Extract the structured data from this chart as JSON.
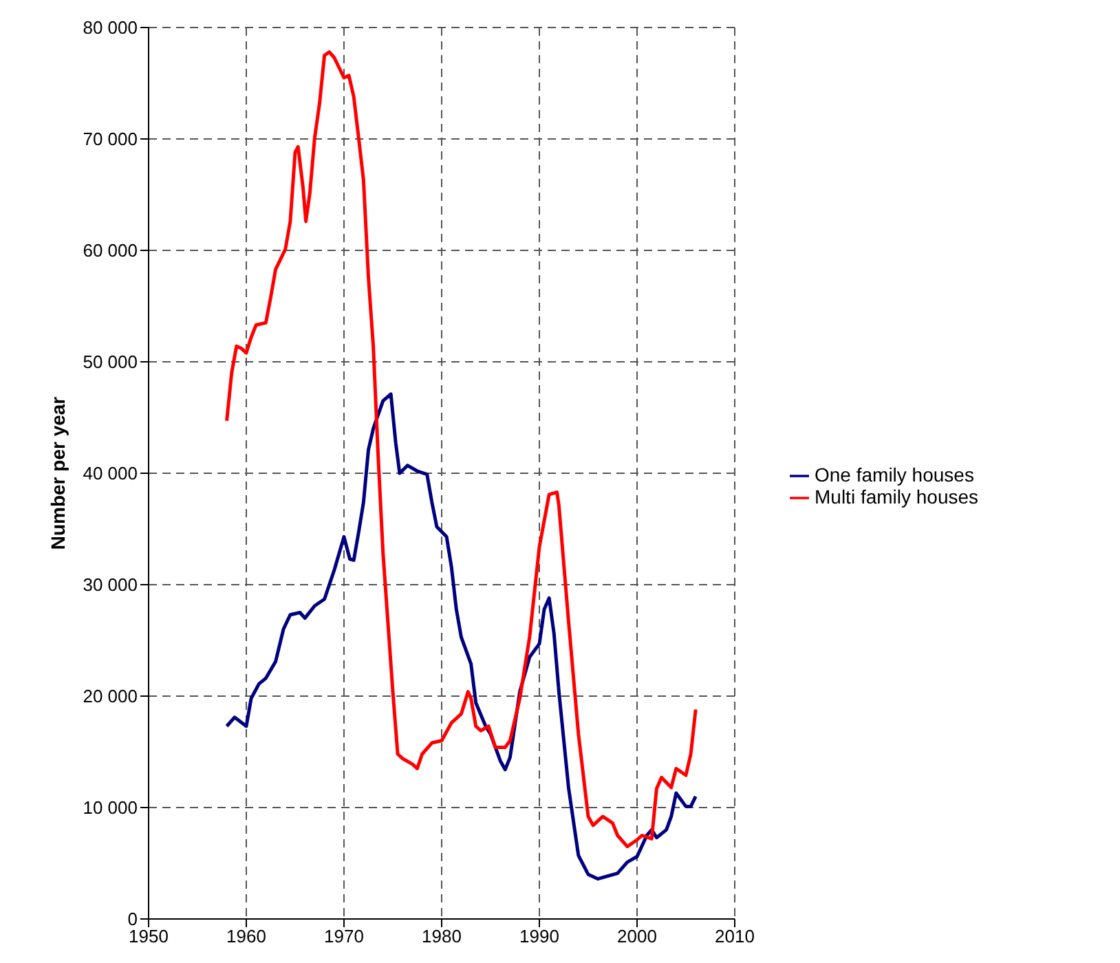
{
  "chart_data": {
    "type": "line",
    "ylabel": "Number per year",
    "xlim": [
      1950,
      2010
    ],
    "xticks": [
      1950,
      1960,
      1970,
      1980,
      1990,
      2000,
      2010
    ],
    "ylim": [
      0,
      80000
    ],
    "yticks": [
      {
        "value": 0,
        "label": "0"
      },
      {
        "value": 10000,
        "label": "10 000"
      },
      {
        "value": 20000,
        "label": "20 000"
      },
      {
        "value": 30000,
        "label": "30 000"
      },
      {
        "value": 40000,
        "label": "40 000"
      },
      {
        "value": 50000,
        "label": "50 000"
      },
      {
        "value": 60000,
        "label": "60 000"
      },
      {
        "value": 70000,
        "label": "70 000"
      },
      {
        "value": 80000,
        "label": "80 000"
      }
    ],
    "grid": true,
    "legend": "right",
    "marker": "none",
    "line_style": "solid",
    "series": [
      {
        "name": "One family houses",
        "color": "#000080",
        "x": [
          1958,
          1958.8,
          1960,
          1960.5,
          1961.3,
          1962,
          1963,
          1963.8,
          1964.5,
          1965.5,
          1966,
          1967,
          1968,
          1969,
          1970,
          1970.6,
          1971,
          1971.5,
          1972,
          1972.5,
          1973,
          1974,
          1974.8,
          1975.3,
          1975.7,
          1976.5,
          1977.5,
          1978.5,
          1979,
          1979.5,
          1980.5,
          1981,
          1981.5,
          1982,
          1983,
          1983.5,
          1984.5,
          1985,
          1986,
          1986.5,
          1987,
          1988,
          1989,
          1990,
          1990.5,
          1991,
          1991.5,
          1992,
          1993,
          1994,
          1995,
          1996,
          1998,
          1999,
          2000,
          2001,
          2001.5,
          2002,
          2003,
          2003.5,
          2004,
          2004.5,
          2005,
          2005.5,
          2006
        ],
        "values": [
          17300,
          18100,
          17300,
          19800,
          21100,
          21600,
          23100,
          26000,
          27300,
          27500,
          27000,
          28100,
          28700,
          31300,
          34300,
          32300,
          32200,
          34700,
          37400,
          42100,
          44000,
          46500,
          47100,
          42700,
          40000,
          40700,
          40200,
          39900,
          37400,
          35200,
          34300,
          31600,
          27800,
          25300,
          22900,
          19400,
          17300,
          16600,
          14200,
          13400,
          14500,
          20400,
          23500,
          24700,
          27800,
          28800,
          25600,
          20400,
          11700,
          5700,
          4000,
          3600,
          4100,
          5100,
          5600,
          7500,
          8000,
          7300,
          8000,
          9200,
          11300,
          10700,
          10100,
          10100,
          11000
        ]
      },
      {
        "name": "Multi family houses",
        "color": "#ff0000",
        "x": [
          1958,
          1958.5,
          1959,
          1959.5,
          1960,
          1960.5,
          1961,
          1962,
          1962.5,
          1963,
          1964,
          1964.5,
          1965,
          1965.3,
          1965.8,
          1966.1,
          1966.5,
          1967,
          1967.5,
          1968,
          1968.5,
          1969,
          1970,
          1970.5,
          1971,
          1971.5,
          1972,
          1972.5,
          1973,
          1973.5,
          1974,
          1974.5,
          1975,
          1975.5,
          1976,
          1977,
          1977.5,
          1978,
          1979,
          1980,
          1981,
          1982,
          1982.7,
          1983,
          1983.5,
          1984,
          1984.8,
          1985.5,
          1986.5,
          1987,
          1988,
          1989,
          1990,
          1991,
          1991.8,
          1992,
          1993,
          1994,
          1995,
          1995.5,
          1996.5,
          1997.5,
          1998,
          1999,
          2000,
          2000.5,
          2001.5,
          2002,
          2002.5,
          2003.5,
          2004,
          2005,
          2005.5,
          2006
        ],
        "values": [
          44700,
          49000,
          51400,
          51200,
          50800,
          52200,
          53300,
          53500,
          55800,
          58300,
          60100,
          62600,
          68800,
          69300,
          65700,
          62600,
          65100,
          70100,
          73200,
          77500,
          77800,
          77300,
          75500,
          75700,
          73800,
          70100,
          66300,
          57600,
          51400,
          41500,
          32800,
          26600,
          20400,
          14800,
          14400,
          13900,
          13500,
          14800,
          15800,
          16000,
          17600,
          18400,
          20400,
          19800,
          17300,
          16900,
          17300,
          15400,
          15400,
          16000,
          19800,
          25300,
          33400,
          38100,
          38300,
          37100,
          26600,
          16600,
          9200,
          8400,
          9200,
          8600,
          7500,
          6500,
          7100,
          7500,
          7200,
          11700,
          12700,
          11800,
          13500,
          12900,
          14800,
          18800
        ]
      }
    ]
  }
}
